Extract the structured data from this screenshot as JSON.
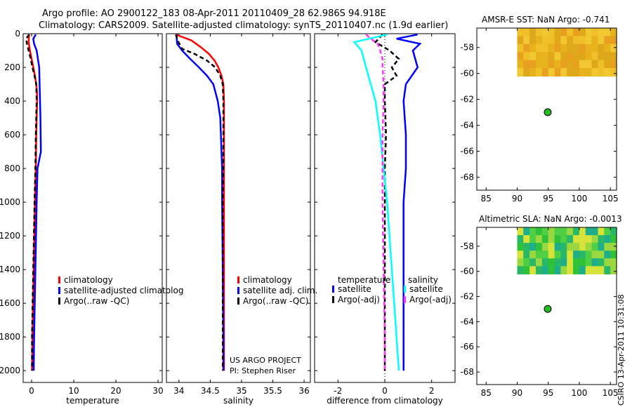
{
  "header": {
    "line1": "Argo profile: AO 2900122_183 08-Apr-2011 20110409_28 62.986S 94.918E",
    "line2": "Climatology: CARS2009. Satellite-adjusted climatology: synTS_20110407.nc (1.9d earlier)"
  },
  "colors": {
    "red": "#ff0000",
    "blue": "#0000ff",
    "black": "#000000",
    "cyan": "#00ffff",
    "magenta": "#ff33ff",
    "marker": "#22bb22"
  },
  "stamp": "CSIRO 13-Apr-2011 10:31:08",
  "chart_data": [
    {
      "type": "line",
      "name": "temperature",
      "xlabel": "temperature",
      "xlim": [
        -2,
        31
      ],
      "ylim": [
        0,
        2070
      ],
      "xticks": [
        0,
        10,
        20,
        30
      ],
      "yticks": [
        0,
        200,
        400,
        600,
        800,
        1000,
        1200,
        1400,
        1600,
        1800,
        2000
      ],
      "legend": [
        "climatology",
        "satellite-adjusted climatolog",
        "Argo(..raw -QC)"
      ],
      "series": [
        {
          "name": "climatology",
          "color": "#ff0000",
          "dash": "",
          "depth": [
            5,
            50,
            100,
            150,
            200,
            250,
            300,
            350,
            400,
            600,
            800,
            1000,
            1400,
            1800,
            2000
          ],
          "values": [
            -0.6,
            -0.7,
            -0.4,
            0.0,
            0.4,
            0.8,
            1.1,
            1.3,
            1.3,
            1.1,
            1.0,
            0.8,
            0.5,
            0.2,
            0.1
          ]
        },
        {
          "name": "satellite-adjusted climatology",
          "color": "#0000ff",
          "dash": "",
          "depth": [
            5,
            30,
            60,
            100,
            150,
            200,
            300,
            400,
            500,
            700,
            800,
            1000,
            1400,
            1800,
            2000
          ],
          "values": [
            1.0,
            0.4,
            0.6,
            1.2,
            1.5,
            1.8,
            1.9,
            2.0,
            2.1,
            2.2,
            1.4,
            1.2,
            0.9,
            0.6,
            0.5
          ]
        },
        {
          "name": "Argo(..raw -QC)",
          "color": "#000000",
          "dash": "6,4",
          "depth": [
            5,
            30,
            60,
            100,
            150,
            200,
            250,
            300,
            400,
            600,
            800,
            1000,
            1400,
            1800,
            2000
          ],
          "values": [
            -0.6,
            -1.3,
            -1.1,
            -0.7,
            -0.2,
            0.2,
            0.7,
            1.1,
            1.2,
            1.0,
            0.9,
            0.7,
            0.4,
            0.1,
            0.1
          ]
        }
      ]
    },
    {
      "type": "line",
      "name": "salinity",
      "xlabel": "salinity",
      "xlim": [
        33.8,
        36.1
      ],
      "ylim": [
        0,
        2070
      ],
      "xticks": [
        34,
        34.5,
        35,
        35.5,
        36
      ],
      "xtick_labels": [
        "34",
        "34.5",
        "35",
        "35.5",
        "36"
      ],
      "legend": [
        "climatology",
        "satellite adj. clim.",
        "Argo(..raw -QC)"
      ],
      "credit": [
        "US ARGO PROJECT",
        "PI: Stephen Riser"
      ],
      "series": [
        {
          "name": "climatology",
          "color": "#ff0000",
          "dash": "",
          "depth": [
            5,
            40,
            80,
            120,
            160,
            200,
            250,
            300,
            400,
            600,
            800,
            1000,
            1400,
            1800,
            2000
          ],
          "values": [
            33.95,
            34.2,
            34.35,
            34.48,
            34.57,
            34.63,
            34.68,
            34.71,
            34.72,
            34.72,
            34.72,
            34.72,
            34.72,
            34.72,
            34.72
          ]
        },
        {
          "name": "satellite adj. clim.",
          "color": "#0000ff",
          "dash": "",
          "depth": [
            5,
            60,
            100,
            150,
            200,
            250,
            300,
            400,
            500,
            700,
            800,
            1000,
            1400,
            1800,
            2000
          ],
          "values": [
            33.96,
            33.97,
            34.05,
            34.18,
            34.32,
            34.45,
            34.55,
            34.62,
            34.66,
            34.68,
            34.69,
            34.69,
            34.7,
            34.71,
            34.71
          ]
        },
        {
          "name": "Argo(..raw -QC)",
          "color": "#000000",
          "dash": "6,4",
          "depth": [
            5,
            40,
            90,
            120,
            160,
            200,
            250,
            300,
            400,
            600,
            800,
            1000,
            1400,
            1800,
            2000
          ],
          "values": [
            33.95,
            33.98,
            34.05,
            34.25,
            34.45,
            34.58,
            34.66,
            34.7,
            34.71,
            34.71,
            34.71,
            34.7,
            34.7,
            34.7,
            34.7
          ]
        }
      ]
    },
    {
      "type": "line",
      "name": "difference",
      "xlabel": "difference from climatology",
      "xlim": [
        -3,
        3
      ],
      "ylim": [
        0,
        2070
      ],
      "xticks": [
        -2,
        0,
        2
      ],
      "legend_headers": [
        "temperature",
        "salinity"
      ],
      "legend": [
        "satellite",
        "Argo(-adj)",
        "satellite",
        "Argo(-adj)"
      ],
      "series": [
        {
          "name": "temperature satellite",
          "color": "#0000ff",
          "dash": "",
          "depth": [
            5,
            30,
            60,
            100,
            150,
            200,
            300,
            400,
            600,
            800,
            1000,
            1400,
            1800,
            2000
          ],
          "values": [
            1.4,
            0.5,
            1.5,
            1.2,
            1.3,
            1.4,
            0.9,
            0.8,
            0.9,
            0.9,
            0.8,
            0.8,
            0.8,
            0.8
          ]
        },
        {
          "name": "temperature Argo(-adj)",
          "color": "#000000",
          "dash": "6,4",
          "depth": [
            5,
            50,
            100,
            150,
            200,
            250,
            300,
            350,
            400,
            600,
            800,
            1000,
            1400,
            1800,
            2000
          ],
          "values": [
            -0.1,
            -0.4,
            0.2,
            0.6,
            0.3,
            0.5,
            0.0,
            0.0,
            0.0,
            0.05,
            0.0,
            0.0,
            0.0,
            0.0,
            0.0
          ]
        },
        {
          "name": "salinity satellite",
          "color": "#00ffff",
          "dash": "",
          "depth": [
            5,
            50,
            100,
            150,
            200,
            300,
            400,
            600,
            800,
            1000,
            1400,
            1800,
            2000
          ],
          "values": [
            0.1,
            -1.3,
            -1.0,
            -0.9,
            -0.8,
            -0.6,
            -0.4,
            -0.2,
            -0.05,
            0.1,
            0.3,
            0.5,
            0.6
          ]
        },
        {
          "name": "salinity Argo(-adj)",
          "color": "#ff33ff",
          "dash": "6,4",
          "depth": [
            5,
            30,
            60,
            100,
            150,
            200,
            300,
            400,
            600,
            800,
            1000,
            1400,
            1800,
            2000
          ],
          "values": [
            -0.8,
            -0.6,
            -0.3,
            -0.2,
            -0.1,
            -0.1,
            -0.05,
            -0.05,
            -0.1,
            -0.1,
            -0.1,
            -0.05,
            0.0,
            0.0
          ]
        }
      ]
    },
    {
      "type": "heatmap",
      "name": "sst-map",
      "title": "AMSR-E SST: NaN Argo: -0.741",
      "xlim": [
        83.5,
        106
      ],
      "ylim": [
        -69,
        -56.5
      ],
      "xticks": [
        85,
        90,
        95,
        100,
        105
      ],
      "yticks": [
        -58,
        -60,
        -62,
        -64,
        -66,
        -68
      ],
      "field_extent": {
        "lon": [
          90,
          106
        ],
        "lat": [
          -60.2,
          -56.5
        ]
      },
      "palette": [
        "#e8b21c",
        "#f0c028",
        "#e9a020",
        "#f2c832",
        "#dfa81a"
      ],
      "profile_location": {
        "lon": 94.918,
        "lat": -62.986
      }
    },
    {
      "type": "heatmap",
      "name": "sla-map",
      "title": "Altimetric SLA: NaN Argo: -0.0013",
      "xlim": [
        83.5,
        106
      ],
      "ylim": [
        -69,
        -56.5
      ],
      "xticks": [
        85,
        90,
        95,
        100,
        105
      ],
      "yticks": [
        -58,
        -60,
        -62,
        -64,
        -66,
        -68
      ],
      "field_extent": {
        "lon": [
          90,
          106
        ],
        "lat": [
          -60.2,
          -56.5
        ]
      },
      "palette": [
        "#2fc238",
        "#4fd044",
        "#28b868",
        "#d6e33a",
        "#9ad840",
        "#1fae8a"
      ],
      "profile_location": {
        "lon": 94.918,
        "lat": -62.986
      }
    }
  ]
}
